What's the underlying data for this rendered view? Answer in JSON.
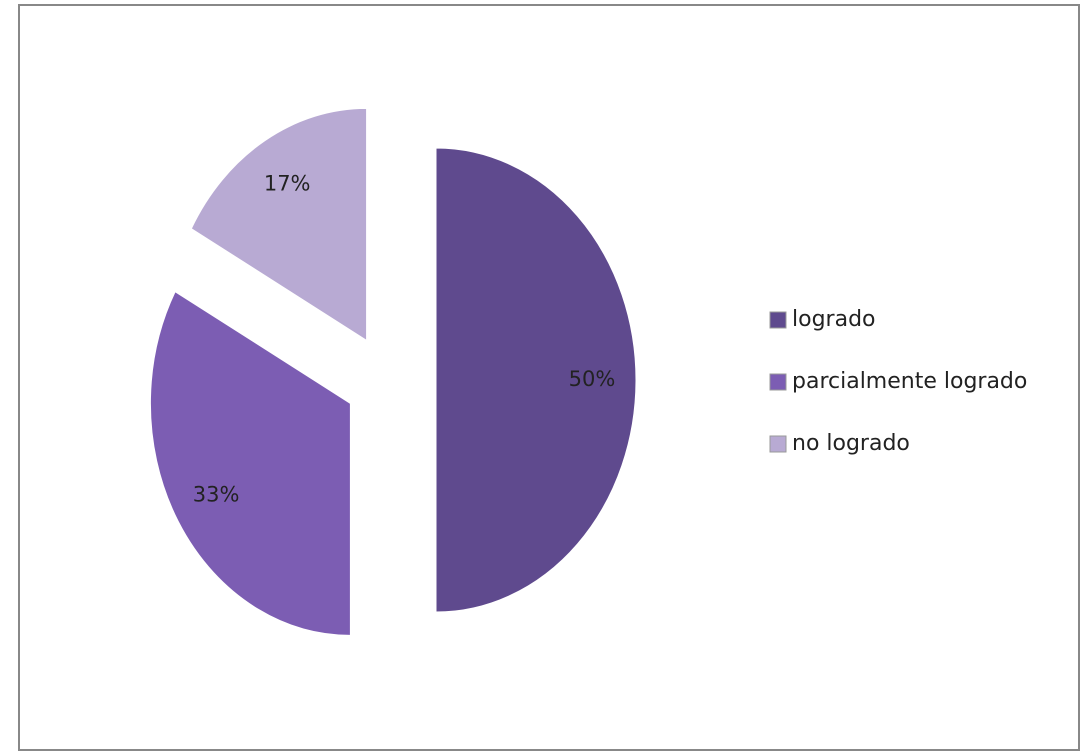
{
  "chart_data": {
    "type": "pie",
    "categories": [
      "logrado",
      "parcialmente logrado",
      "no logrado"
    ],
    "values": [
      50,
      33,
      17
    ],
    "value_labels": [
      "50%",
      "33%",
      "17%"
    ],
    "colors": [
      "#5f4a8e",
      "#7c5db3",
      "#b8aad3"
    ],
    "legend": "right"
  }
}
